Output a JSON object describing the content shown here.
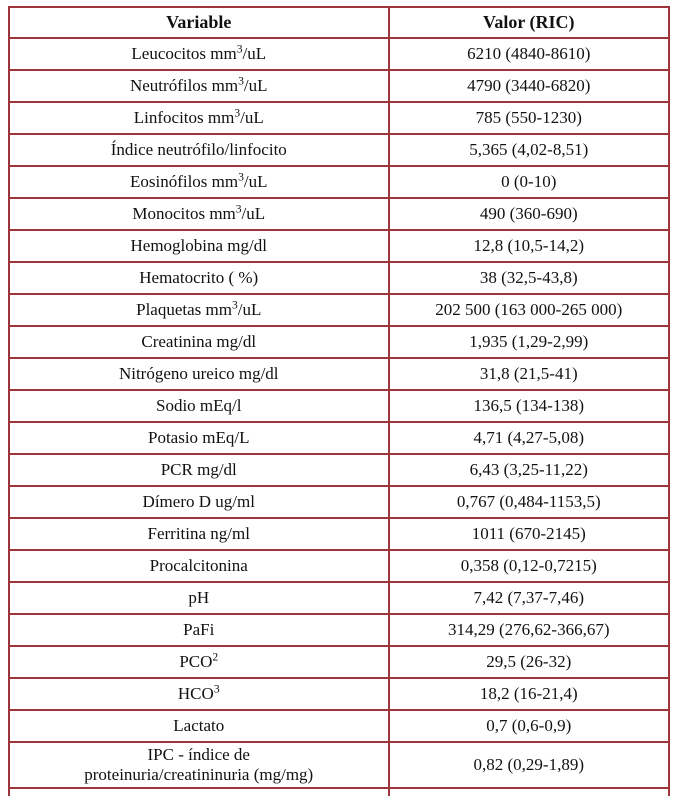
{
  "colors": {
    "border": "#9d353c",
    "text": "#111111",
    "background": "#ffffff"
  },
  "table": {
    "headers": [
      "Variable",
      "Valor (RIC)"
    ],
    "rows": [
      {
        "parts": [
          "Leucocitos mm",
          "3",
          "/uL"
        ],
        "value": "6210 (4840-8610)"
      },
      {
        "parts": [
          "Neutrófilos mm",
          "3",
          "/uL"
        ],
        "value": "4790 (3440-6820)"
      },
      {
        "parts": [
          "Linfocitos mm",
          "3",
          "/uL"
        ],
        "value": "785 (550-1230)"
      },
      {
        "parts": [
          "Índice neutrófilo/linfocito",
          "",
          ""
        ],
        "value": "5,365 (4,02-8,51)"
      },
      {
        "parts": [
          "Eosinófilos mm",
          "3",
          "/uL"
        ],
        "value": "0 (0-10)"
      },
      {
        "parts": [
          "Monocitos mm",
          "3",
          "/uL"
        ],
        "value": "490 (360-690)"
      },
      {
        "parts": [
          "Hemoglobina mg/dl",
          "",
          ""
        ],
        "value": "12,8 (10,5-14,2)"
      },
      {
        "parts": [
          "Hematocrito ( %)",
          "",
          ""
        ],
        "value": "38 (32,5-43,8)"
      },
      {
        "parts": [
          "Plaquetas mm",
          "3",
          "/uL"
        ],
        "value": "202 500 (163 000-265 000)"
      },
      {
        "parts": [
          "Creatinina mg/dl",
          "",
          ""
        ],
        "value": "1,935 (1,29-2,99)"
      },
      {
        "parts": [
          "Nitrógeno ureico mg/dl",
          "",
          ""
        ],
        "value": "31,8 (21,5-41)"
      },
      {
        "parts": [
          "Sodio mEq/l",
          "",
          ""
        ],
        "value": "136,5 (134-138)"
      },
      {
        "parts": [
          "Potasio mEq/L",
          "",
          ""
        ],
        "value": "4,71 (4,27-5,08)"
      },
      {
        "parts": [
          "PCR mg/dl",
          "",
          ""
        ],
        "value": "6,43 (3,25-11,22)"
      },
      {
        "parts": [
          "Dímero D ug/ml",
          "",
          ""
        ],
        "value": "0,767 (0,484-1153,5)"
      },
      {
        "parts": [
          "Ferritina ng/ml",
          "",
          ""
        ],
        "value": "1011 (670-2145)"
      },
      {
        "parts": [
          "Procalcitonina",
          "",
          ""
        ],
        "value": "0,358 (0,12-0,7215)"
      },
      {
        "parts": [
          "pH",
          "",
          ""
        ],
        "value": "7,42 (7,37-7,46)"
      },
      {
        "parts": [
          "PaFi",
          "",
          ""
        ],
        "value": "314,29 (276,62-366,67)"
      },
      {
        "parts": [
          "PCO",
          "2",
          ""
        ],
        "value": "29,5 (26-32)"
      },
      {
        "parts": [
          "HCO",
          "3",
          ""
        ],
        "value": "18,2 (16-21,4)"
      },
      {
        "parts": [
          "Lactato",
          "",
          ""
        ],
        "value": "0,7 (0,6-0,9)"
      },
      {
        "parts": [
          "IPC - índice de\nproteinuria/creatininuria (mg/mg)",
          "",
          ""
        ],
        "value": "0,82 (0,29-1,89)"
      }
    ]
  }
}
